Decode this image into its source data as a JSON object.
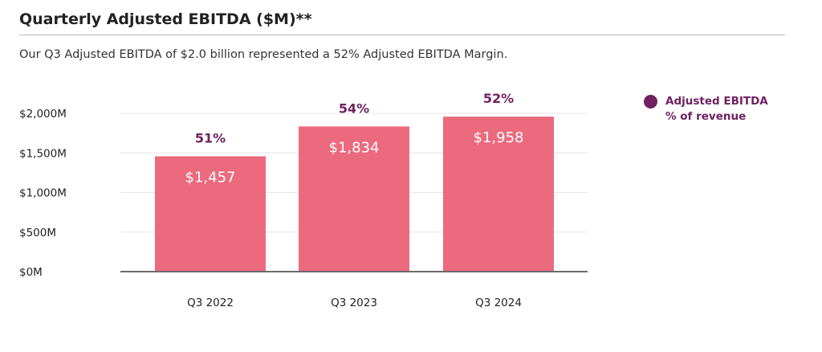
{
  "header": {
    "title": "Quarterly Adjusted EBITDA ($M)**",
    "subtitle": "Our Q3 Adjusted EBITDA of $2.0 billion represented a 52% Adjusted EBITDA Margin."
  },
  "legend": {
    "label": "Adjusted EBITDA % of revenue",
    "color": "#6e2260"
  },
  "chart_data": {
    "type": "bar",
    "categories": [
      "Q3 2022",
      "Q3 2023",
      "Q3 2024"
    ],
    "values": [
      1457,
      1834,
      1958
    ],
    "value_labels": [
      "$1,457",
      "$1,834",
      "$1,958"
    ],
    "margin_labels": [
      "51%",
      "54%",
      "52%"
    ],
    "margin_values": [
      51,
      54,
      52
    ],
    "y_ticks": [
      0,
      500,
      1000,
      1500,
      2000
    ],
    "y_tick_labels": [
      "$0M",
      "$500M",
      "$1,000M",
      "$1,500M",
      "$2,000M"
    ],
    "ylim": [
      0,
      2000
    ],
    "title": "Quarterly Adjusted EBITDA ($M)**",
    "xlabel": "",
    "ylabel": "",
    "grid": true,
    "legend_position": "right",
    "bar_color": "#ec6a7e",
    "margin_color": "#6e2260"
  }
}
